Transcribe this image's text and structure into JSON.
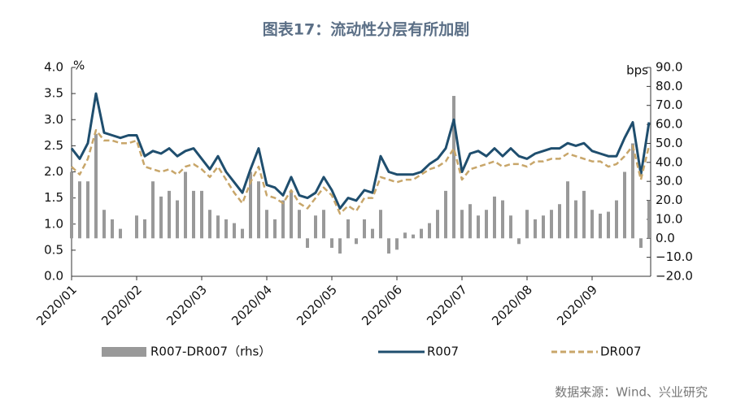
{
  "chart_data": {
    "type": "bar-line",
    "title": "图表17：流动性分层有所加剧",
    "source": "数据来源：Wind、兴业研究",
    "ylabel": "%",
    "y2label": "bps",
    "categories": [
      "2020/01",
      null,
      null,
      null,
      null,
      null,
      null,
      null,
      "2020/02",
      null,
      null,
      null,
      null,
      null,
      null,
      null,
      "2020/03",
      null,
      null,
      null,
      null,
      null,
      null,
      null,
      "2020/04",
      null,
      null,
      null,
      null,
      null,
      null,
      null,
      "2020/05",
      null,
      null,
      null,
      null,
      null,
      null,
      null,
      "2020/06",
      null,
      null,
      null,
      null,
      null,
      null,
      null,
      "2020/07",
      null,
      null,
      null,
      null,
      null,
      null,
      null,
      "2020/08",
      null,
      null,
      null,
      null,
      null,
      null,
      null,
      "2020/09",
      null,
      null,
      null,
      null,
      null,
      null,
      null
    ],
    "series": [
      {
        "name": "R007-DR007（rhs）",
        "color": "#999999",
        "axis": "y2",
        "kind": "bar",
        "values": [
          35,
          30,
          30,
          55,
          15,
          10,
          5,
          0,
          12,
          10,
          30,
          22,
          25,
          20,
          35,
          25,
          25,
          15,
          12,
          10,
          8,
          5,
          35,
          30,
          15,
          10,
          20,
          25,
          15,
          -5,
          12,
          15,
          -5,
          -8,
          10,
          -3,
          10,
          5,
          15,
          -8,
          -6,
          3,
          2,
          5,
          8,
          15,
          25,
          75,
          15,
          18,
          12,
          15,
          22,
          20,
          12,
          -3,
          15,
          10,
          12,
          15,
          18,
          30,
          20,
          25,
          15,
          13,
          14,
          20,
          35,
          50,
          -5,
          20
        ]
      },
      {
        "name": "R007",
        "color": "#1f4e6e",
        "kind": "line",
        "dashed": false,
        "values": [
          2.45,
          2.25,
          2.55,
          3.5,
          2.75,
          2.7,
          2.65,
          2.7,
          2.7,
          2.3,
          2.4,
          2.35,
          2.45,
          2.3,
          2.4,
          2.45,
          2.25,
          2.05,
          2.3,
          2.0,
          1.8,
          1.6,
          2.05,
          2.45,
          1.75,
          1.7,
          1.55,
          1.9,
          1.55,
          1.5,
          1.6,
          1.9,
          1.65,
          1.3,
          1.5,
          1.45,
          1.65,
          1.6,
          2.3,
          2.0,
          1.95,
          1.95,
          1.95,
          2.0,
          2.15,
          2.25,
          2.45,
          3.0,
          2.0,
          2.35,
          2.4,
          2.3,
          2.45,
          2.3,
          2.45,
          2.3,
          2.25,
          2.35,
          2.4,
          2.45,
          2.45,
          2.55,
          2.5,
          2.55,
          2.4,
          2.35,
          2.3,
          2.3,
          2.65,
          2.95,
          1.95,
          2.95
        ]
      },
      {
        "name": "DR007",
        "color": "#c8a66a",
        "kind": "line",
        "dashed": true,
        "values": [
          2.1,
          1.95,
          2.25,
          2.8,
          2.6,
          2.6,
          2.55,
          2.55,
          2.6,
          2.1,
          2.05,
          2.0,
          2.05,
          1.95,
          2.1,
          2.15,
          2.05,
          1.9,
          2.1,
          1.85,
          1.6,
          1.4,
          1.8,
          2.1,
          1.55,
          1.5,
          1.4,
          1.65,
          1.4,
          1.3,
          1.5,
          1.7,
          1.55,
          1.2,
          1.35,
          1.25,
          1.5,
          1.5,
          1.9,
          1.85,
          1.8,
          1.85,
          1.85,
          1.95,
          2.05,
          2.1,
          2.2,
          2.45,
          1.85,
          2.05,
          2.1,
          2.15,
          2.2,
          2.1,
          2.15,
          2.15,
          2.1,
          2.2,
          2.2,
          2.25,
          2.25,
          2.35,
          2.3,
          2.25,
          2.2,
          2.2,
          2.1,
          2.15,
          2.3,
          2.5,
          1.85,
          2.5
        ]
      }
    ],
    "ylim": [
      0,
      4
    ],
    "yticks": [
      {
        "value": 0,
        "label": "0.0"
      },
      {
        "value": 0.5,
        "label": "0.5"
      },
      {
        "value": 1,
        "label": "1.0"
      },
      {
        "value": 1.5,
        "label": "1.5"
      },
      {
        "value": 2,
        "label": "2.0"
      },
      {
        "value": 2.5,
        "label": "2.5"
      },
      {
        "value": 3,
        "label": "3.0"
      },
      {
        "value": 3.5,
        "label": "3.5"
      },
      {
        "value": 4,
        "label": "4.0"
      }
    ],
    "y2lim": [
      -20,
      90
    ],
    "y2ticks": [
      {
        "value": -20,
        "label": "−20.0"
      },
      {
        "value": -10,
        "label": "−10.0"
      },
      {
        "value": 0,
        "label": "0.0"
      },
      {
        "value": 10,
        "label": "10.0"
      },
      {
        "value": 20,
        "label": "20.0"
      },
      {
        "value": 30,
        "label": "30.0"
      },
      {
        "value": 40,
        "label": "40.0"
      },
      {
        "value": 50,
        "label": "50.0"
      },
      {
        "value": 60,
        "label": "60.0"
      },
      {
        "value": 70,
        "label": "70.0"
      },
      {
        "value": 80,
        "label": "80.0"
      },
      {
        "value": 90,
        "label": "90.0"
      }
    ],
    "legend": "bottom"
  }
}
